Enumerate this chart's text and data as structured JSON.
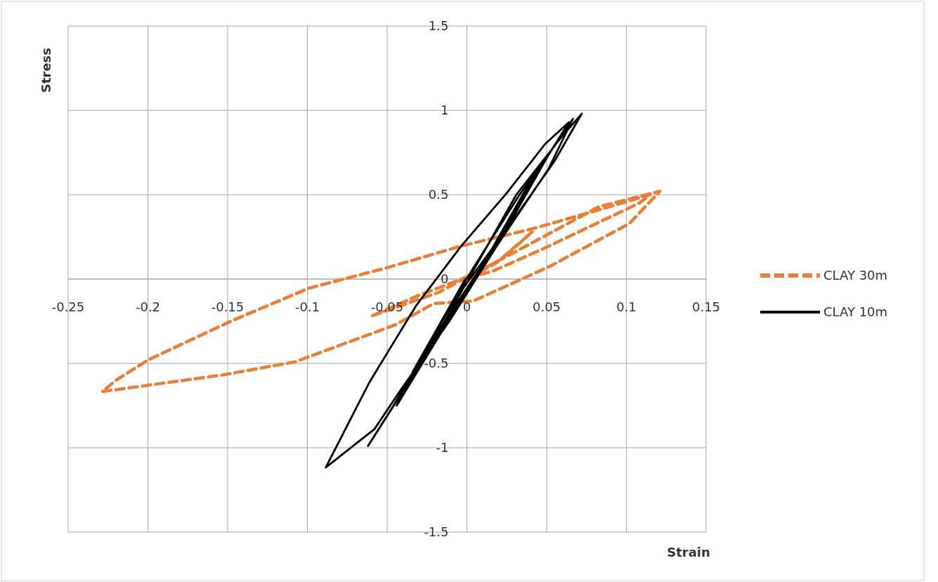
{
  "chart_data": {
    "type": "line",
    "xlabel": "Strain",
    "ylabel": "Stress",
    "xlim": [
      -0.25,
      0.15
    ],
    "xticks": [
      -0.25,
      -0.2,
      -0.15,
      -0.1,
      -0.05,
      0,
      0.05,
      0.1,
      0.15
    ],
    "ylim": [
      -1.5,
      1.5
    ],
    "yticks": [
      -1.5,
      -1,
      -0.5,
      0,
      0.5,
      1,
      1.5
    ],
    "grid": true,
    "legend": "right",
    "marker": "none",
    "series": [
      {
        "name": "CLAY 30m",
        "color": "#ed7d31",
        "line_style": "dashed",
        "x": [
          0.001,
          0.019,
          0.041,
          0.022,
          -0.018,
          -0.06,
          -0.031,
          0.002,
          0.038,
          0.083,
          0.121,
          0.102,
          0.052,
          0.004,
          -0.021,
          -0.0445,
          -0.1075,
          -0.152,
          -0.2286,
          -0.22,
          -0.2,
          -0.148,
          -0.099,
          -0.049,
          -0.0035,
          0.042,
          0.079,
          0.115,
          0.108,
          0.048,
          0.017,
          -0.001
        ],
        "values": [
          0,
          0.1,
          0.28,
          0.12,
          -0.08,
          -0.22,
          -0.1,
          0.02,
          0.2,
          0.43,
          0.52,
          0.33,
          0.075,
          -0.13,
          -0.146,
          -0.27,
          -0.49,
          -0.567,
          -0.667,
          -0.6,
          -0.48,
          -0.25,
          -0.054,
          0.07,
          0.196,
          0.3,
          0.4,
          0.5,
          0.45,
          0.18,
          0.05,
          0
        ]
      },
      {
        "name": "CLAY 10m",
        "color": "#000000",
        "line_style": "solid",
        "x": [
          0.001,
          0.031,
          0.06,
          0.072,
          0.055,
          0.029,
          -0.002,
          -0.029,
          -0.062,
          -0.046,
          -0.021,
          0.011,
          0.041,
          0.0665,
          0.051,
          0.019,
          -0.011,
          -0.041,
          -0.058,
          -0.0885,
          -0.061,
          -0.032,
          -0.0035,
          0.025,
          0.049,
          0.064,
          0.039,
          0.015,
          -0.015,
          -0.044,
          -0.028,
          0.003,
          0.033,
          0.052,
          0.022,
          -0.009,
          -0.034,
          -0.001
        ],
        "values": [
          0,
          0.5,
          0.85,
          0.98,
          0.7,
          0.35,
          -0.05,
          -0.5,
          -0.99,
          -0.75,
          -0.35,
          0.1,
          0.6,
          0.95,
          0.65,
          0.2,
          -0.25,
          -0.65,
          -0.89,
          -1.117,
          -0.61,
          -0.16,
          0.196,
          0.51,
          0.8,
          0.93,
          0.55,
          0.15,
          -0.3,
          -0.75,
          -0.45,
          0.05,
          0.5,
          0.75,
          0.25,
          -0.2,
          -0.55,
          0
        ]
      }
    ]
  }
}
